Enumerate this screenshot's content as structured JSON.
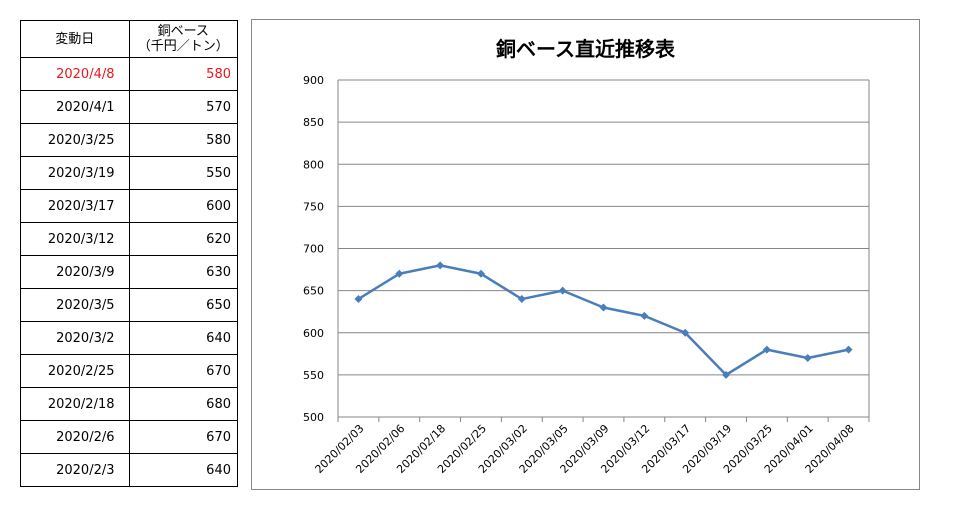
{
  "table": {
    "header_date": "変動日",
    "header_value_line1": "銅ベース",
    "header_value_line2": "（千円／トン）",
    "rows": [
      {
        "date": "2020/4/8",
        "value": "580",
        "highlight": true
      },
      {
        "date": "2020/4/1",
        "value": "570"
      },
      {
        "date": "2020/3/25",
        "value": "580"
      },
      {
        "date": "2020/3/19",
        "value": "550"
      },
      {
        "date": "2020/3/17",
        "value": "600"
      },
      {
        "date": "2020/3/12",
        "value": "620"
      },
      {
        "date": "2020/3/9",
        "value": "630"
      },
      {
        "date": "2020/3/5",
        "value": "650"
      },
      {
        "date": "2020/3/2",
        "value": "640"
      },
      {
        "date": "2020/2/25",
        "value": "670"
      },
      {
        "date": "2020/2/18",
        "value": "680"
      },
      {
        "date": "2020/2/6",
        "value": "670"
      },
      {
        "date": "2020/2/3",
        "value": "640"
      }
    ],
    "highlight_color": "#e8171c"
  },
  "chart_data": {
    "type": "line",
    "title": "銅ベース直近推移表",
    "categories": [
      "2020/02/03",
      "2020/02/06",
      "2020/02/18",
      "2020/02/25",
      "2020/03/02",
      "2020/03/05",
      "2020/03/09",
      "2020/03/12",
      "2020/03/17",
      "2020/03/19",
      "2020/03/25",
      "2020/04/01",
      "2020/04/08"
    ],
    "series": [
      {
        "values": [
          640,
          670,
          680,
          670,
          640,
          650,
          630,
          620,
          600,
          550,
          580,
          570,
          580
        ],
        "color": "#4a7ebb",
        "marker": "diamond"
      }
    ],
    "ylim": [
      500,
      900
    ],
    "yticks": [
      "900",
      "850",
      "800",
      "750",
      "700",
      "650",
      "600",
      "550",
      "500"
    ],
    "grid": true,
    "legend": "none",
    "xlabel": "",
    "ylabel": ""
  }
}
